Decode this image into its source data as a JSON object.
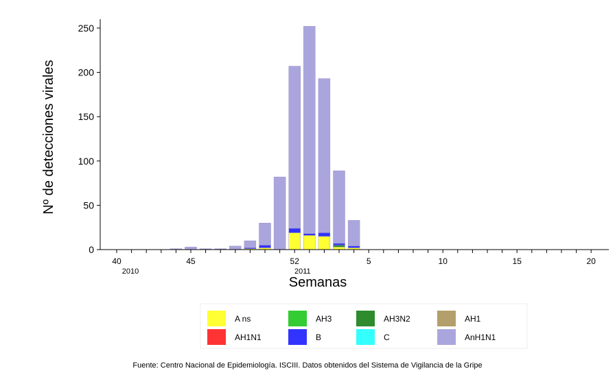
{
  "chart_data": {
    "type": "bar",
    "stacked": true,
    "title": "",
    "xlabel": "Semanas",
    "ylabel": "Nº de detecciones virales",
    "ylim": [
      0,
      260
    ],
    "yticks": [
      0,
      50,
      100,
      150,
      200,
      250
    ],
    "weeks": [
      40,
      41,
      42,
      43,
      44,
      45,
      46,
      47,
      48,
      49,
      50,
      51,
      52,
      1,
      2,
      3,
      4,
      5,
      6,
      7,
      8,
      9,
      10,
      11,
      12,
      13,
      14,
      15,
      16,
      17,
      18,
      19,
      20
    ],
    "tick_labels": [
      {
        "week": 40,
        "label": "40"
      },
      {
        "week": 45,
        "label": "45"
      },
      {
        "week": 52,
        "label": "52"
      },
      {
        "week": 5,
        "label": "5"
      },
      {
        "week": 10,
        "label": "10"
      },
      {
        "week": 15,
        "label": "15"
      },
      {
        "week": 20,
        "label": "20"
      }
    ],
    "year_labels": [
      {
        "week": 40,
        "label": "2010"
      },
      {
        "week": 1,
        "label": "2011"
      }
    ],
    "series": [
      {
        "name": "A ns",
        "color": "#ffff33",
        "values": [
          0,
          0,
          0,
          0,
          0,
          0,
          0.5,
          0.5,
          0,
          1,
          2,
          0,
          19,
          16,
          15,
          3,
          2,
          0,
          0,
          0,
          0,
          0,
          0,
          0,
          0,
          0,
          0,
          0,
          0,
          0,
          0,
          0,
          0
        ]
      },
      {
        "name": "AH3",
        "color": "#33cc33",
        "values": [
          0,
          0,
          0,
          0,
          0,
          0,
          0,
          0,
          0,
          0,
          0,
          0,
          0,
          0,
          0,
          0,
          0,
          0,
          0,
          0,
          0,
          0,
          0,
          0,
          0,
          0,
          0,
          0,
          0,
          0,
          0,
          0,
          0
        ]
      },
      {
        "name": "AH3N2",
        "color": "#2e8b2e",
        "values": [
          0,
          0,
          0,
          0,
          0,
          0,
          0,
          0,
          0,
          0,
          0,
          0,
          0,
          0,
          0,
          2,
          0,
          0,
          0,
          0,
          0,
          0,
          0,
          0,
          0,
          0,
          0,
          0,
          0,
          0,
          0,
          0,
          0
        ]
      },
      {
        "name": "AH1",
        "color": "#b39f6b",
        "values": [
          0,
          0,
          0,
          0,
          0,
          0,
          0,
          0,
          0,
          0,
          0,
          0,
          0,
          0,
          0,
          0,
          0,
          0,
          0,
          0,
          0,
          0,
          0,
          0,
          0,
          0,
          0,
          0,
          0,
          0,
          0,
          0,
          0
        ]
      },
      {
        "name": "AH1N1",
        "color": "#ff3333",
        "values": [
          0,
          0,
          0,
          0,
          0,
          0,
          0,
          0,
          0,
          0,
          0,
          0,
          0,
          0,
          0,
          0,
          0,
          0,
          0,
          0,
          0,
          0,
          0,
          0,
          0,
          0,
          0,
          0,
          0,
          0,
          0,
          0,
          0
        ]
      },
      {
        "name": "B",
        "color": "#3333ff",
        "values": [
          0,
          0,
          0,
          0,
          0,
          0,
          0,
          0,
          0,
          1,
          3,
          0,
          5,
          2,
          4,
          2,
          2,
          0,
          0,
          0,
          0,
          0,
          0,
          0,
          0,
          0,
          0,
          0,
          0,
          0,
          0,
          0,
          0
        ]
      },
      {
        "name": "C",
        "color": "#33ffff",
        "values": [
          0,
          0,
          0,
          0,
          0,
          0,
          0,
          0,
          0,
          0,
          0,
          0,
          0,
          0,
          0,
          0,
          0,
          0,
          0,
          0,
          0,
          0,
          0,
          0,
          0,
          0,
          0,
          0,
          0,
          0,
          0,
          0,
          0
        ]
      },
      {
        "name": "AnH1N1",
        "color": "#aaa6dd",
        "values": [
          0,
          0,
          0,
          0,
          1,
          3,
          0.5,
          0.5,
          4,
          8,
          25,
          82,
          183,
          234,
          174,
          82,
          29,
          0,
          0,
          0,
          0,
          0,
          0,
          0,
          0,
          0,
          0,
          0,
          0,
          0,
          0,
          0,
          0
        ]
      }
    ],
    "legend_order": [
      "A ns",
      "AH3",
      "AH3N2",
      "AH1",
      "AH1N1",
      "B",
      "C",
      "AnH1N1"
    ],
    "legend_position": "bottom",
    "grid": false
  },
  "source": "Fuente: Centro Nacional de Epidemiología. ISCIII. Datos obtenidos del Sistema de Vigilancia de la Gripe"
}
